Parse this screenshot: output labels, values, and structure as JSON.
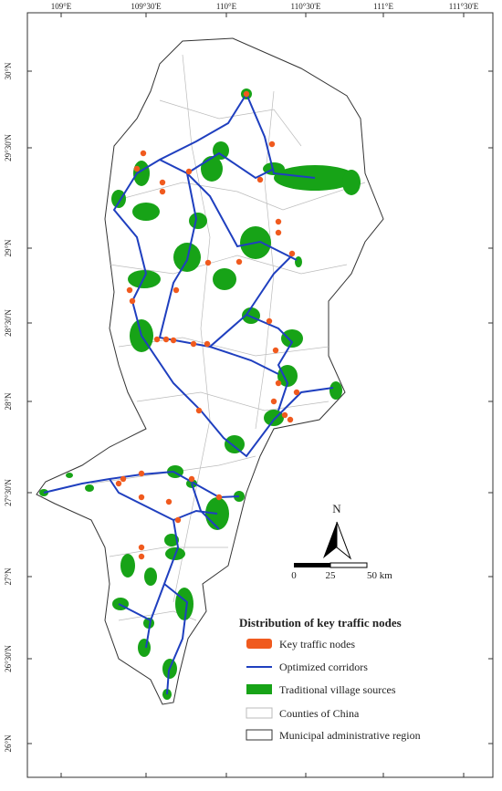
{
  "map": {
    "longitude_labels": [
      "109°E",
      "109°30'E",
      "110°E",
      "110°30'E",
      "111°E",
      "111°30'E"
    ],
    "latitude_labels": [
      "30°N",
      "29°30'N",
      "29°N",
      "28°30'N",
      "28°N",
      "27°30'N",
      "27°N",
      "26°30'N",
      "26°N"
    ],
    "north_arrow": "N",
    "scale_bar": {
      "labels": [
        "0",
        "25",
        "50 km"
      ]
    },
    "legend": {
      "title": "Distribution of key traffic nodes",
      "items": [
        "Key traffic nodes",
        "Optimized corridors",
        "Traditional village sources",
        "Counties of China",
        "Municipal administrative region"
      ]
    }
  }
}
